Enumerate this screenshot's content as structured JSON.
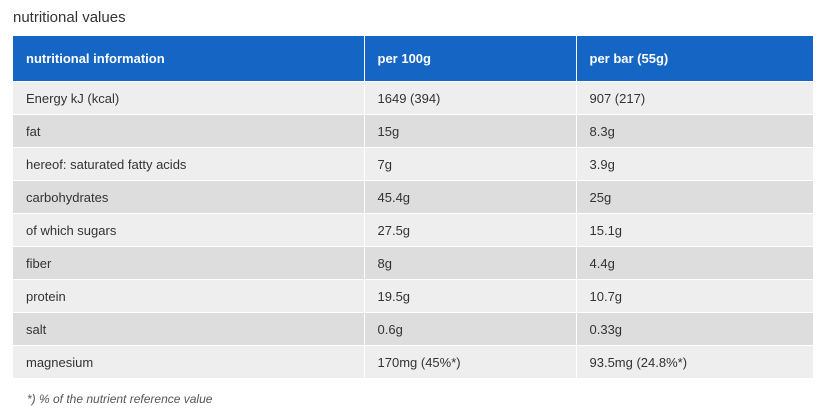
{
  "title": "nutritional values",
  "table": {
    "headers": [
      "nutritional information",
      "per 100g",
      "per bar (55g)"
    ],
    "rows": [
      [
        "Energy kJ (kcal)",
        "1649 (394)",
        "907 (217)"
      ],
      [
        "fat",
        "15g",
        "8.3g"
      ],
      [
        "hereof: saturated fatty acids",
        "7g",
        "3.9g"
      ],
      [
        "carbohydrates",
        "45.4g",
        "25g"
      ],
      [
        "of which sugars",
        "27.5g",
        "15.1g"
      ],
      [
        "fiber",
        "8g",
        "4.4g"
      ],
      [
        "protein",
        "19.5g",
        "10.7g"
      ],
      [
        "salt",
        "0.6g",
        "0.33g"
      ],
      [
        "magnesium",
        "170mg (45%*)",
        "93.5mg (24.8%*)"
      ]
    ]
  },
  "footnote": "*) % of the nutrient reference value",
  "colors": {
    "header_background": "#1565c4",
    "row_odd": "#eeeeee",
    "row_even": "#dddddd"
  }
}
